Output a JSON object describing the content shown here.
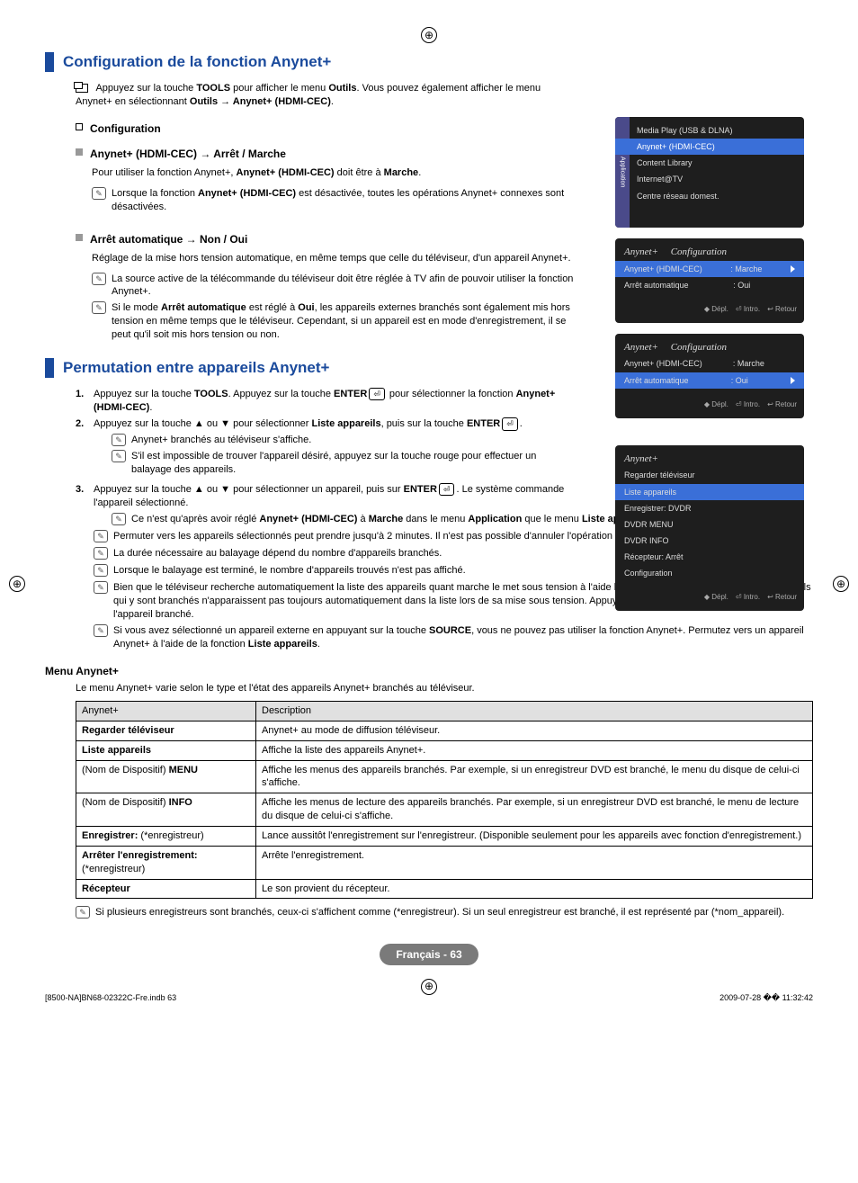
{
  "cornerGlyph": "⊕",
  "section1": {
    "title": "Configuration de la fonction Anynet+",
    "toolLine1": "Appuyez sur la touche ",
    "toolLine1b": "TOOLS",
    "toolLine1c": " pour afficher le menu ",
    "toolLine1d": "Outils",
    "toolLine1e": ". Vous pouvez également afficher le menu Anynet+ en sélectionnant ",
    "toolLine1f": "Outils → Anynet+ (HDMI-CEC)",
    "toolLine1g": ".",
    "configHeading": "Configuration",
    "sub1Title": "Anynet+ (HDMI-CEC) → Arrêt / Marche",
    "sub1Body1": "Pour utiliser la fonction Anynet+, ",
    "sub1Body1b": "Anynet+ (HDMI-CEC)",
    "sub1Body1c": " doit être à ",
    "sub1Body1d": "Marche",
    "sub1Body1e": ".",
    "sub1Note1a": "Lorsque la fonction ",
    "sub1Note1b": "Anynet+ (HDMI-CEC)",
    "sub1Note1c": " est désactivée, toutes les opérations Anynet+ connexes sont désactivées.",
    "sub2Title": "Arrêt automatique → Non / Oui",
    "sub2Body": "Réglage de la mise hors tension automatique, en même temps que celle du téléviseur, d'un appareil Anynet+.",
    "sub2Note1": "La source active de la télécommande du téléviseur doit être réglée à TV afin de pouvoir utiliser la fonction Anynet+.",
    "sub2Note2a": "Si le mode ",
    "sub2Note2b": "Arrêt automatique",
    "sub2Note2c": " est réglé à ",
    "sub2Note2d": "Oui",
    "sub2Note2e": ", les appareils externes branchés sont également mis hors tension en même temps que le téléviseur. Cependant, si un appareil est en mode d'enregistrement, il se peut qu'il soit mis hors tension ou non."
  },
  "section2": {
    "title": "Permutation entre appareils Anynet+",
    "step1a": "Appuyez sur la touche ",
    "step1b": "TOOLS",
    "step1c": ". Appuyez sur la touche ",
    "step1d": "ENTER",
    "step1e": " pour sélectionner la fonction ",
    "step1f": "Anynet+ (HDMI-CEC)",
    "step1g": ".",
    "step2a": "Appuyez sur la touche ▲ ou ▼ pour sélectionner ",
    "step2b": "Liste appareils",
    "step2c": ", puis sur la touche ",
    "step2d": "ENTER",
    "step2e": ".",
    "step2n1": "Anynet+ branchés au téléviseur s'affiche.",
    "step2n2": "S'il est impossible de trouver l'appareil désiré, appuyez sur la touche rouge pour effectuer un balayage des appareils.",
    "step3a": "Appuyez sur la touche ▲ ou ▼ pour sélectionner un appareil, puis sur ",
    "step3b": "ENTER",
    "step3c": ". Le système commande l'appareil sélectionné.",
    "step3n1a": "Ce n'est qu'après avoir réglé ",
    "step3n1b": "Anynet+ (HDMI-CEC)",
    "step3n1c": " à ",
    "step3n1d": "Marche",
    "step3n1e": " dans le menu ",
    "step3n1f": "Application",
    "step3n1g": " que le menu ",
    "step3n1h": "Liste appareils",
    "step3n1i": " s'affiche.",
    "bullets": [
      "Permuter vers les appareils sélectionnés peut prendre jusqu'à 2 minutes. Il n'est pas possible d'annuler l'opération de permutation.",
      "La durée nécessaire au balayage dépend du nombre d'appareils branchés.",
      "Lorsque le balayage est terminé, le nombre d'appareils trouvés n'est pas affiché.",
      "Bien que le téléviseur recherche automatiquement la liste des appareils quant marche le met sous tension à l'aide la touche de mise sous tension, les appareils qui y sont branchés n'apparaissent pas toujours automatiquement dans la liste lors de sa mise sous tension. Appuyez sur la touche rouge pour rechercher l'appareil branché."
    ],
    "lastBulletA": "Si vous avez sélectionné un appareil externe en appuyant sur la touche ",
    "lastBulletB": "SOURCE",
    "lastBulletC": ", vous ne pouvez pas utiliser la fonction Anynet+. Permutez vers un appareil Anynet+ à l'aide de la fonction ",
    "lastBulletD": "Liste appareils",
    "lastBulletE": "."
  },
  "menu": {
    "heading": "Menu Anynet+",
    "intro": "Le menu Anynet+ varie selon le type et l'état des appareils Anynet+ branchés au téléviseur.",
    "headers": [
      "Anynet+",
      "Description"
    ],
    "rows": [
      [
        "Regarder téléviseur",
        "Anynet+ au mode de diffusion téléviseur."
      ],
      [
        "Liste appareils",
        "Affiche la liste des appareils Anynet+."
      ],
      [
        "MENU_ROW",
        "Affiche les menus des appareils branchés. Par exemple, si un enregistreur DVD est branché, le menu du disque de celui-ci s'affiche."
      ],
      [
        "INFO_ROW",
        "Affiche les menus de lecture des appareils branchés. Par exemple, si un enregistreur DVD est branché, le menu de lecture du disque de celui-ci s'affiche."
      ],
      [
        "ENR_ROW",
        "Lance aussitôt l'enregistrement sur l'enregistreur. (Disponible seulement pour les appareils avec fonction d'enregistrement.)"
      ],
      [
        "ARR_ROW",
        "Arrête l'enregistrement."
      ],
      [
        "Récepteur",
        "Le son provient du récepteur."
      ]
    ],
    "menuRowLabel1": "(Nom de Dispositif) ",
    "menuRowLabel1b": "MENU",
    "infoRowLabel1": "(Nom de Dispositif) ",
    "infoRowLabel1b": "INFO",
    "enrRowLabel1": "Enregistrer:",
    "enrRowLabel2": " (*enregistreur)",
    "arrRowLabel1": "Arrêter l'enregistrement:",
    "arrRowLabel2": " (*enregistreur)",
    "footNote": "Si plusieurs enregistreurs sont branchés, ceux-ci s'affichent comme (*enregistreur). Si un seul enregistreur est branché, il est représenté par (*nom_appareil)."
  },
  "pageBadge": "Français - 63",
  "footer": {
    "left": "[8500-NA]BN68-02322C-Fre.indb   63",
    "right": "2009-07-28   �� 11:32:42"
  },
  "tv": {
    "panel1": {
      "tab": "Application",
      "rows": [
        "Media Play (USB & DLNA)",
        "Anynet+ (HDMI-CEC)",
        "Content Library",
        "Internet@TV",
        "Centre réseau domest."
      ]
    },
    "panel2": {
      "brand": "Anynet+",
      "title": "Configuration",
      "r1a": "Anynet+ (HDMI-CEC)",
      "r1b": ": Marche",
      "r2a": "Arrêt automatique",
      "r2b": ": Oui",
      "foot": [
        "◆ Dépl.",
        "⏎ Intro.",
        "↩ Retour"
      ]
    },
    "panel3": {
      "brand": "Anynet+",
      "title": "Configuration",
      "r1a": "Anynet+ (HDMI-CEC)",
      "r1b": ": Marche",
      "r2a": "Arrêt automatique",
      "r2b": ": Oui",
      "foot": [
        "◆ Dépl.",
        "⏎ Intro.",
        "↩ Retour"
      ]
    },
    "panel4": {
      "brand": "Anynet+",
      "rows": [
        "Regarder téléviseur",
        "Liste appareils",
        "Enregistrer: DVDR",
        "DVDR MENU",
        "DVDR INFO",
        "Récepteur: Arrêt",
        "Configuration"
      ],
      "foot": [
        "◆ Dépl.",
        "⏎ Intro.",
        "↩ Retour"
      ]
    }
  }
}
